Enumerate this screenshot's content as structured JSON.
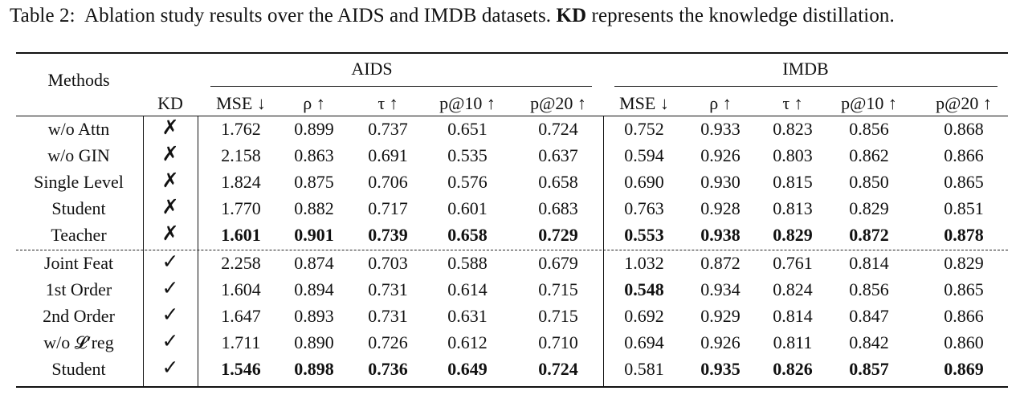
{
  "caption": {
    "prefix": "Table 2:",
    "text_before": "Ablation study results over the AIDS and IMDB datasets.",
    "bold_term": "KD",
    "text_after": "represents the knowledge distillation."
  },
  "header": {
    "methods": "Methods",
    "kd": "KD",
    "group_aids": "AIDS",
    "group_imdb": "IMDB",
    "metrics": [
      "MSE ↓",
      "ρ ↑",
      "τ ↑",
      "p@10 ↑",
      "p@20 ↑"
    ]
  },
  "marks": {
    "cross": "✗",
    "check": "✓"
  },
  "rows": [
    {
      "method": "w/o Attn",
      "kd": "cross",
      "aids": [
        "1.762",
        "0.899",
        "0.737",
        "0.651",
        "0.724"
      ],
      "imdb": [
        "0.752",
        "0.933",
        "0.823",
        "0.856",
        "0.868"
      ],
      "aids_bold": [
        false,
        false,
        false,
        false,
        false
      ],
      "imdb_bold": [
        false,
        false,
        false,
        false,
        false
      ]
    },
    {
      "method": "w/o GIN",
      "kd": "cross",
      "aids": [
        "2.158",
        "0.863",
        "0.691",
        "0.535",
        "0.637"
      ],
      "imdb": [
        "0.594",
        "0.926",
        "0.803",
        "0.862",
        "0.866"
      ],
      "aids_bold": [
        false,
        false,
        false,
        false,
        false
      ],
      "imdb_bold": [
        false,
        false,
        false,
        false,
        false
      ]
    },
    {
      "method": "Single Level",
      "kd": "cross",
      "aids": [
        "1.824",
        "0.875",
        "0.706",
        "0.576",
        "0.658"
      ],
      "imdb": [
        "0.690",
        "0.930",
        "0.815",
        "0.850",
        "0.865"
      ],
      "aids_bold": [
        false,
        false,
        false,
        false,
        false
      ],
      "imdb_bold": [
        false,
        false,
        false,
        false,
        false
      ]
    },
    {
      "method": "Student",
      "kd": "cross",
      "aids": [
        "1.770",
        "0.882",
        "0.717",
        "0.601",
        "0.683"
      ],
      "imdb": [
        "0.763",
        "0.928",
        "0.813",
        "0.829",
        "0.851"
      ],
      "aids_bold": [
        false,
        false,
        false,
        false,
        false
      ],
      "imdb_bold": [
        false,
        false,
        false,
        false,
        false
      ]
    },
    {
      "method": "Teacher",
      "kd": "cross",
      "aids": [
        "1.601",
        "0.901",
        "0.739",
        "0.658",
        "0.729"
      ],
      "imdb": [
        "0.553",
        "0.938",
        "0.829",
        "0.872",
        "0.878"
      ],
      "aids_bold": [
        true,
        true,
        true,
        true,
        true
      ],
      "imdb_bold": [
        true,
        true,
        true,
        true,
        true
      ]
    },
    {
      "method": "Joint Feat",
      "kd": "check",
      "aids": [
        "2.258",
        "0.874",
        "0.703",
        "0.588",
        "0.679"
      ],
      "imdb": [
        "1.032",
        "0.872",
        "0.761",
        "0.814",
        "0.829"
      ],
      "aids_bold": [
        false,
        false,
        false,
        false,
        false
      ],
      "imdb_bold": [
        false,
        false,
        false,
        false,
        false
      ]
    },
    {
      "method": "1st Order",
      "kd": "check",
      "aids": [
        "1.604",
        "0.894",
        "0.731",
        "0.614",
        "0.715"
      ],
      "imdb": [
        "0.548",
        "0.934",
        "0.824",
        "0.856",
        "0.865"
      ],
      "aids_bold": [
        false,
        false,
        false,
        false,
        false
      ],
      "imdb_bold": [
        true,
        false,
        false,
        false,
        false
      ]
    },
    {
      "method": "2nd Order",
      "kd": "check",
      "aids": [
        "1.647",
        "0.893",
        "0.731",
        "0.631",
        "0.715"
      ],
      "imdb": [
        "0.692",
        "0.929",
        "0.814",
        "0.847",
        "0.866"
      ],
      "aids_bold": [
        false,
        false,
        false,
        false,
        false
      ],
      "imdb_bold": [
        false,
        false,
        false,
        false,
        false
      ]
    },
    {
      "method": "w/o 𝓛′reg",
      "kd": "check",
      "aids": [
        "1.711",
        "0.890",
        "0.726",
        "0.612",
        "0.710"
      ],
      "imdb": [
        "0.694",
        "0.926",
        "0.811",
        "0.842",
        "0.860"
      ],
      "aids_bold": [
        false,
        false,
        false,
        false,
        false
      ],
      "imdb_bold": [
        false,
        false,
        false,
        false,
        false
      ]
    },
    {
      "method": "Student",
      "kd": "check",
      "aids": [
        "1.546",
        "0.898",
        "0.736",
        "0.649",
        "0.724"
      ],
      "imdb": [
        "0.581",
        "0.935",
        "0.826",
        "0.857",
        "0.869"
      ],
      "aids_bold": [
        true,
        true,
        true,
        true,
        true
      ],
      "imdb_bold": [
        false,
        true,
        true,
        true,
        true
      ]
    }
  ]
}
